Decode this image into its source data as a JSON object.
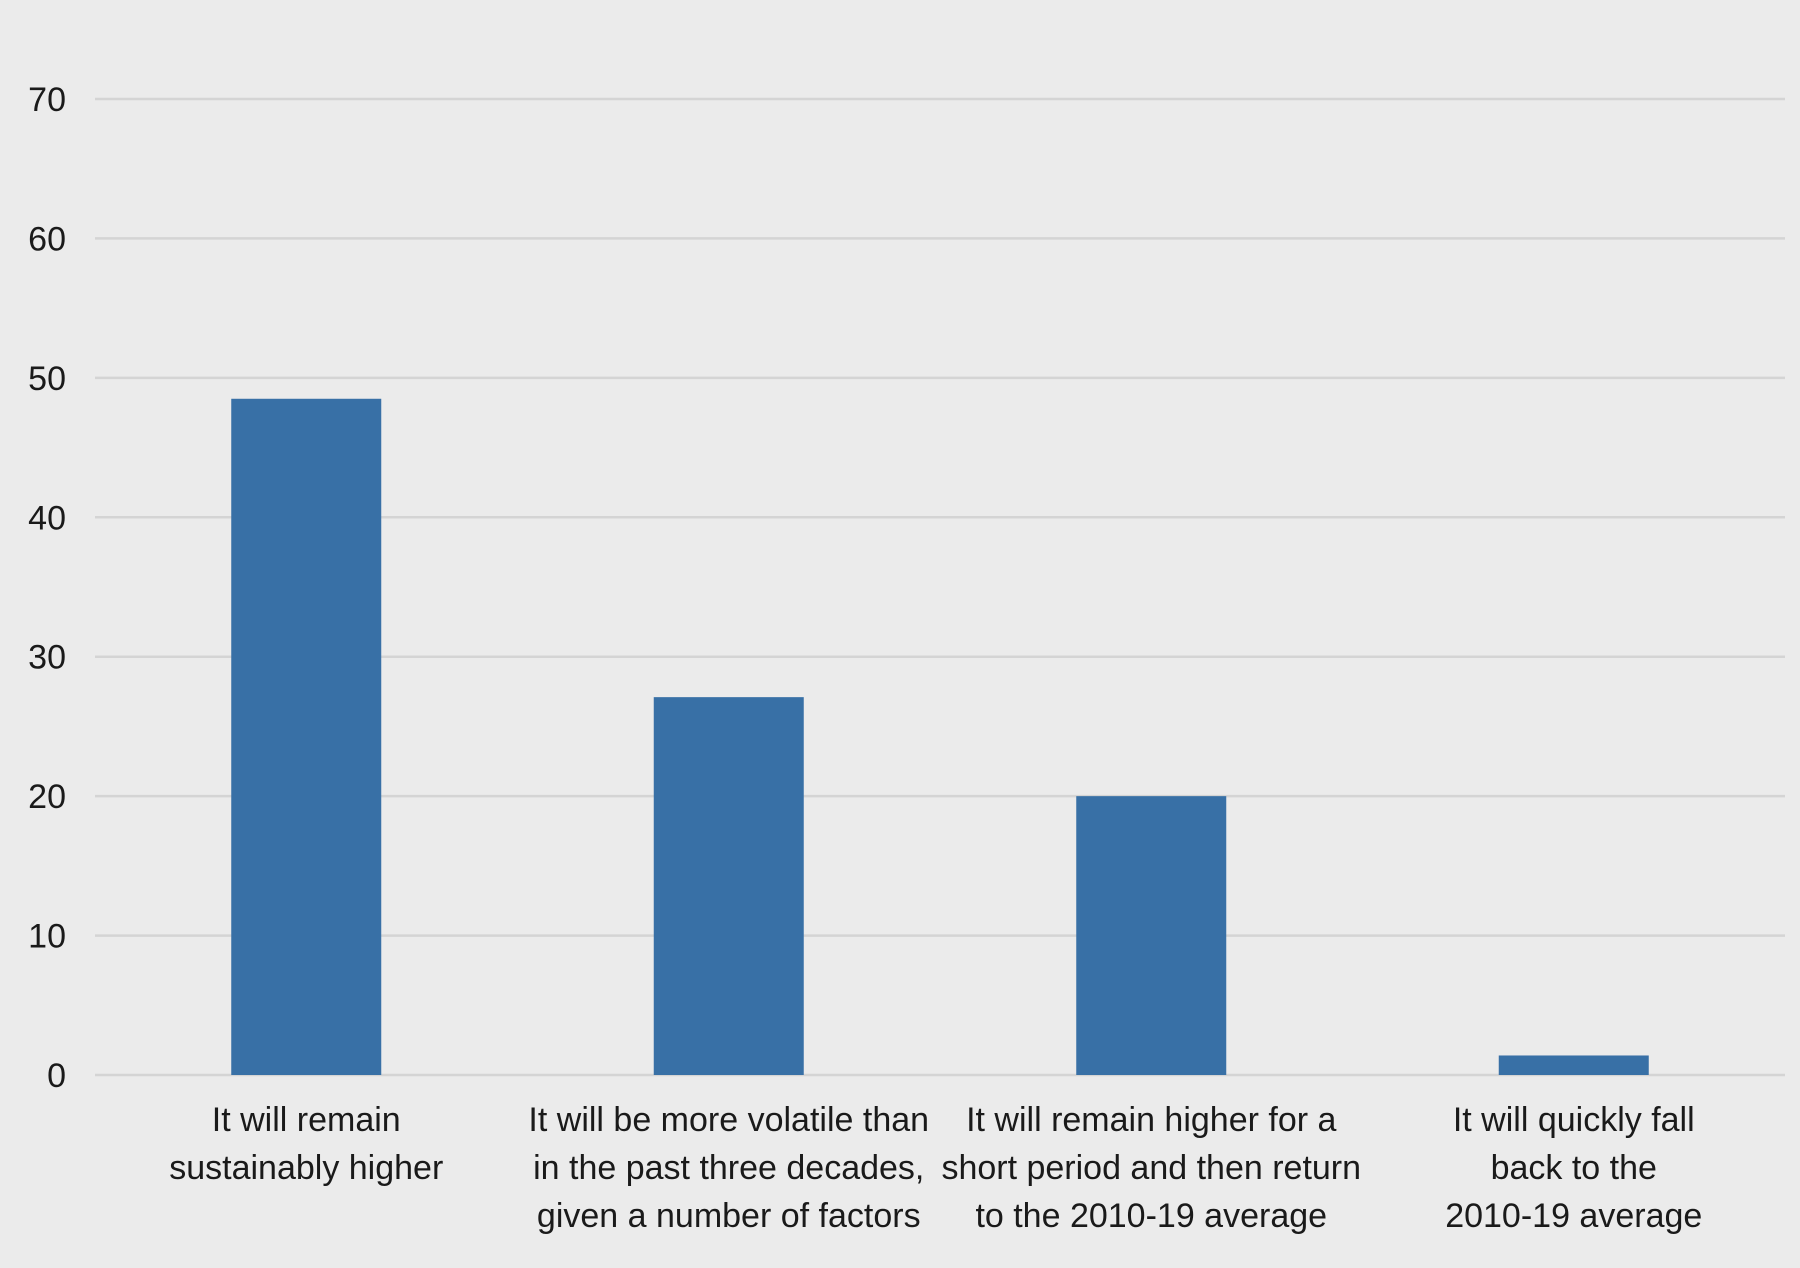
{
  "chart_data": {
    "type": "bar",
    "categories": [
      [
        "It will remain",
        "sustainably higher"
      ],
      [
        "It will be more volatile than",
        "in the past three decades,",
        "given a number of factors"
      ],
      [
        "It will remain higher for a",
        "short period and then return",
        "to the 2010-19 average"
      ],
      [
        "It will quickly fall",
        "back to the",
        "2010-19 average"
      ]
    ],
    "values": [
      48.5,
      27.1,
      20.0,
      1.4
    ],
    "title": "",
    "xlabel": "",
    "ylabel": "",
    "ylim": [
      0,
      70
    ],
    "yticks": [
      0,
      10,
      20,
      30,
      40,
      50,
      60,
      70
    ],
    "grid": true,
    "bar_color": "#3870a6",
    "background_color": "#ebebeb",
    "grid_color": "#d4d4d4"
  }
}
